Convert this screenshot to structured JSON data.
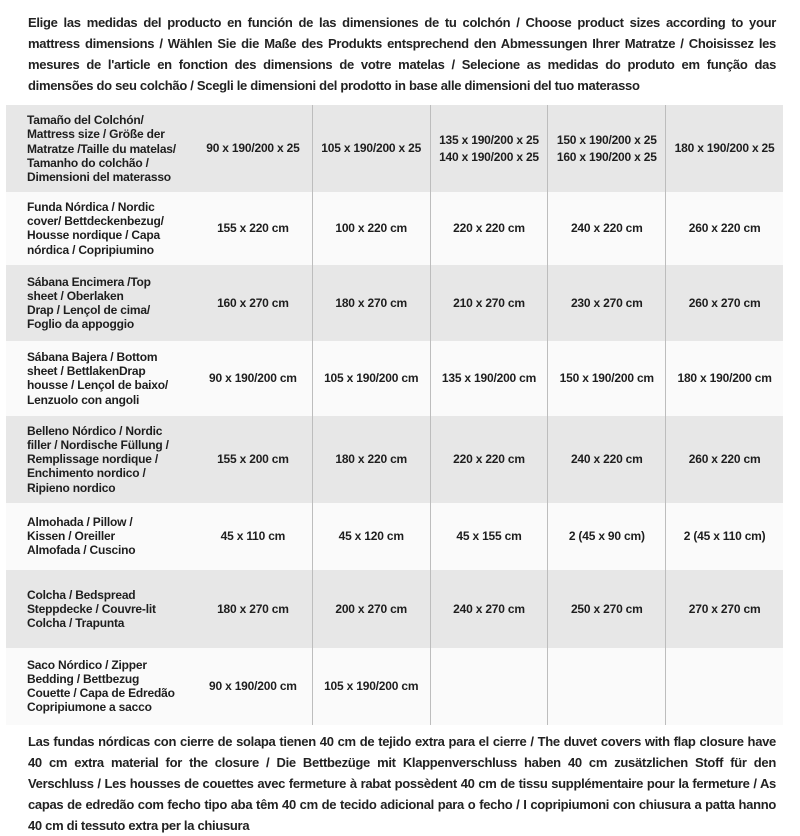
{
  "colors": {
    "row_shaded": "#e7e7e7",
    "row_light": "#fafafa",
    "border": "#bdbdbd",
    "text": "#1e1e1e"
  },
  "notes": {
    "top": "Elige las medidas del producto en función de las dimensiones de tu colchón / Choose product sizes according to your mattress dimensions / Wählen Sie die Maße des Produkts entsprechend den Abmessungen Ihrer Matratze / Choisissez les mesures de l'article en fonction des dimensions de votre matelas / Selecione as medidas do produto em função das dimensões do seu colchão / Scegli le dimensioni del prodotto in base alle dimensioni del tuo materasso",
    "bottom": "Las fundas nórdicas con cierre de solapa tienen 40 cm de tejido extra para el cierre  / The duvet covers with flap closure have 40 cm extra material for the closure / Die Bettbezüge mit Klappenverschluss haben 40 cm zusätzlichen Stoff für den Verschluss / Les housses de couettes avec fermeture à rabat possèdent 40 cm de tissu supplémentaire pour la fermeture / As capas de edredão com fecho tipo aba têm 40 cm de tecido adicional para o fecho / I copripiumoni con chiusura a patta hanno 40 cm di tessuto extra per la chiusura"
  },
  "table": {
    "header": {
      "label": "Tamaño del Colchón/\nMattress size / Größe der\nMatratze /Taille du matelas/\nTamanho do colchão /\nDimensioni del materasso",
      "columns": [
        [
          "90 x 190/200 x 25"
        ],
        [
          "105 x 190/200 x 25"
        ],
        [
          "135 x 190/200 x 25",
          "140 x 190/200 x 25"
        ],
        [
          "150 x 190/200 x 25",
          "160 x 190/200 x 25"
        ],
        [
          "180 x 190/200 x 25"
        ]
      ]
    },
    "rows": [
      {
        "label": "Funda Nórdica /  Nordic\ncover/ Bettdeckenbezug/\nHousse nordique  / Capa\nnórdica / Copripiumino",
        "values": [
          "155 x 220 cm",
          "100 x 220 cm",
          "220 x 220 cm",
          "240 x 220 cm",
          "260 x 220 cm"
        ]
      },
      {
        "label": "Sábana Encimera /Top\nsheet / Oberlaken\nDrap / Lençol de cima/\nFoglio da appoggio",
        "values": [
          "160 x 270 cm",
          "180 x 270 cm",
          "210 x 270 cm",
          "230 x 270 cm",
          "260 x 270 cm"
        ]
      },
      {
        "label": "Sábana Bajera / Bottom\nsheet / BettlakenDrap\nhousse / Lençol de baixo/\nLenzuolo con angoli",
        "values": [
          "90 x 190/200 cm",
          "105 x 190/200 cm",
          "135 x 190/200 cm",
          "150 x 190/200 cm",
          "180 x 190/200 cm"
        ]
      },
      {
        "label": "Belleno Nórdico / Nordic\nfiller / Nordische Füllung /\nRemplissage nordique /\nEnchimento nordico /\nRipieno nordico",
        "values": [
          "155 x 200 cm",
          "180 x 220 cm",
          "220 x 220 cm",
          "240 x 220 cm",
          "260 x 220 cm"
        ]
      },
      {
        "label": "Almohada  / Pillow /\nKissen / Oreiller\nAlmofada / Cuscino",
        "values": [
          "45 x 110 cm",
          "45 x 120 cm",
          "45 x 155 cm",
          "2 (45 x 90 cm)",
          "2 (45 x 110 cm)"
        ]
      },
      {
        "label": "Colcha / Bedspread\nSteppdecke / Couvre-lit\nColcha / Trapunta",
        "values": [
          "180 x 270 cm",
          "200 x 270 cm",
          "240 x 270 cm",
          "250 x 270 cm",
          "270 x 270 cm"
        ]
      },
      {
        "label": "Saco Nórdico / Zipper\nBedding / Bettbezug\nCouette  / Capa de Edredão\nCopripiumone a sacco",
        "values": [
          "90 x 190/200 cm",
          "105 x 190/200 cm",
          "",
          "",
          ""
        ]
      }
    ]
  }
}
